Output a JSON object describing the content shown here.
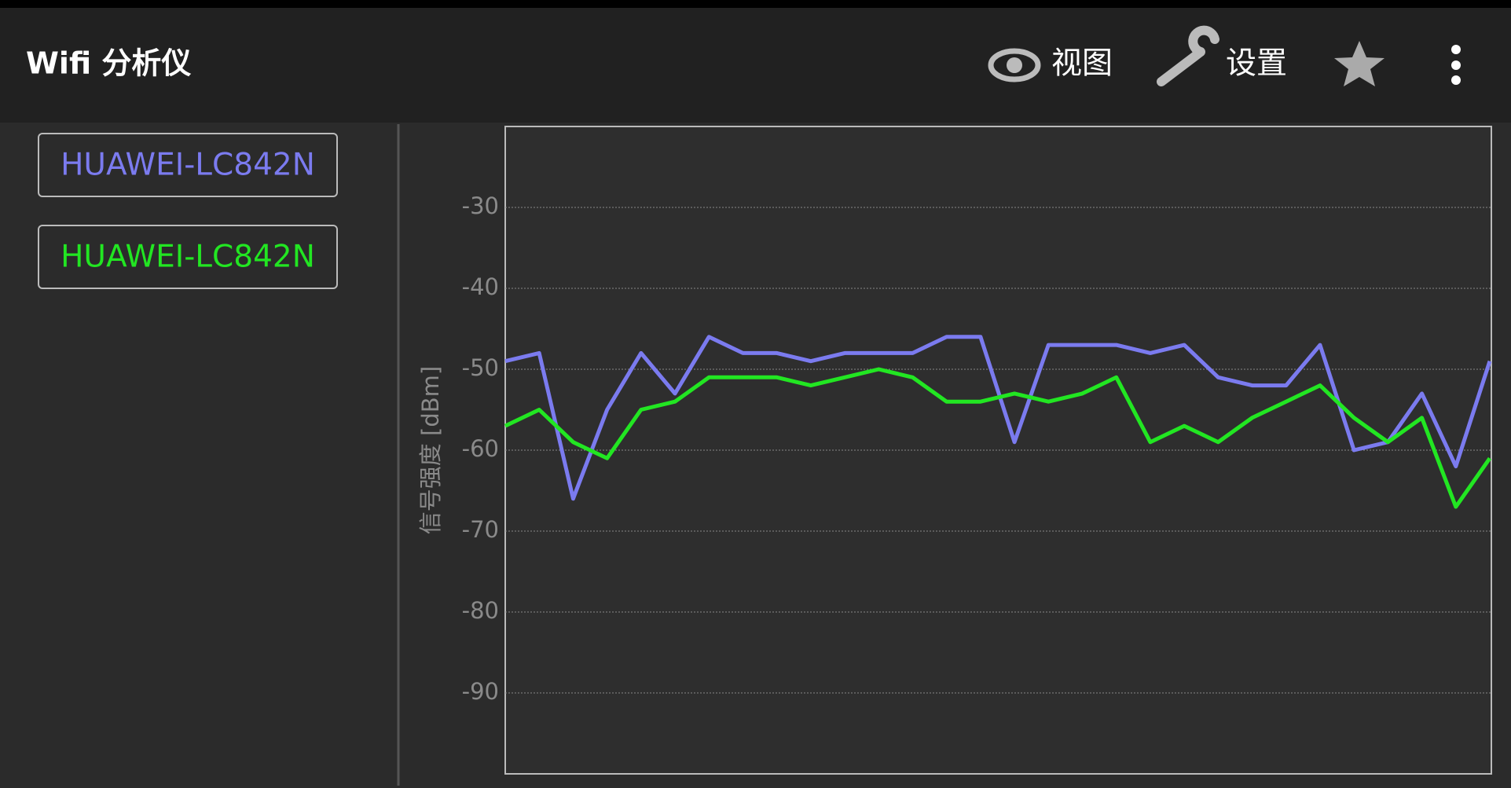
{
  "app_bar": {
    "title": "Wifi 分析仪",
    "actions": [
      "视图",
      "设置"
    ]
  },
  "chart_data": {
    "type": "line",
    "y_label": "信号强度 [dBm]",
    "categories": [
      null,
      null,
      null,
      null,
      null,
      null,
      null,
      null,
      null,
      null,
      null,
      null,
      null,
      null,
      null,
      null,
      null,
      null,
      null,
      null,
      null,
      null,
      null,
      null,
      null,
      null,
      null,
      null,
      null,
      null
    ],
    "series": [
      {
        "name": "HUAWEI-LC842N",
        "color": "#7b7bef",
        "values": [
          -49,
          -48,
          -66,
          -55,
          -48,
          -53,
          -46,
          -48,
          -48,
          -49,
          -48,
          -48,
          -48,
          -46,
          -46,
          -59,
          -47,
          -47,
          -47,
          -48,
          -47,
          -51,
          -52,
          -52,
          -47,
          -60,
          -59,
          -53,
          -62,
          -49
        ]
      },
      {
        "name": "HUAWEI-LC842N",
        "color": "#22e622",
        "values": [
          -57,
          -55,
          -59,
          -61,
          -55,
          -54,
          -51,
          -51,
          -51,
          -52,
          -51,
          -50,
          -51,
          -54,
          -54,
          -53,
          -54,
          -53,
          -51,
          -59,
          -57,
          -59,
          -56,
          -54,
          -52,
          -56,
          -59,
          -56,
          -67,
          -61
        ]
      }
    ],
    "ylim": [
      -100,
      -20
    ],
    "yticks": [
      -30,
      -40,
      -50,
      -60,
      -70,
      -80,
      -90
    ],
    "grid": true
  }
}
